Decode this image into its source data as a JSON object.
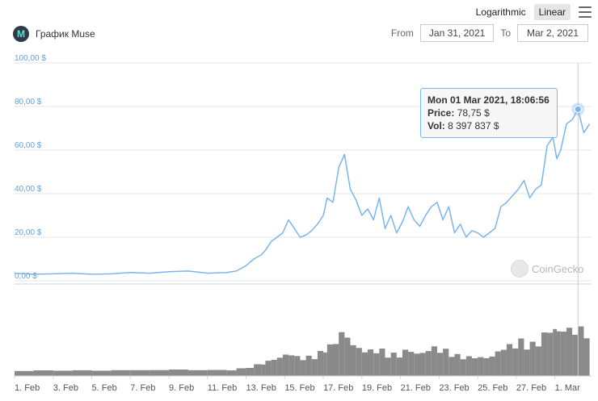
{
  "header": {
    "scale_buttons": [
      "Logarithmic",
      "Linear"
    ],
    "active_scale": "Linear",
    "title": "График Muse",
    "from_label": "From",
    "from_value": "Jan 31, 2021",
    "to_label": "To",
    "to_value": "Mar 2, 2021"
  },
  "tooltip": {
    "date": "Mon 01 Mar 2021, 18:06:56",
    "price_label": "Price:",
    "price_value": "78,75 $",
    "vol_label": "Vol:",
    "vol_value": "8 397 837 $"
  },
  "credit": "CoinGecko",
  "colors": {
    "line": "#7cb5ec",
    "volume": "#8a8a8a",
    "grid": "#e6e6e6",
    "axis_text": "#6a9fd4"
  },
  "chart_data": {
    "type": "line",
    "title": "",
    "xlabel": "",
    "ylabel": "",
    "ylim": [
      0,
      100
    ],
    "y_ticks": [
      "0,00 $",
      "20,00 $",
      "40,00 $",
      "60,00 $",
      "80,00 $",
      "100,00 $"
    ],
    "x_ticks": [
      "1. Feb",
      "3. Feb",
      "5. Feb",
      "7. Feb",
      "9. Feb",
      "11. Feb",
      "13. Feb",
      "15. Feb",
      "17. Feb",
      "19. Feb",
      "21. Feb",
      "23. Feb",
      "25. Feb",
      "27. Feb",
      "1. Mar"
    ],
    "x_start_day": 0,
    "x_tick_days": [
      0,
      2,
      4,
      6,
      8,
      10,
      12,
      14,
      16,
      18,
      20,
      22,
      24,
      26,
      28
    ],
    "x_range_days": [
      0,
      29.9
    ],
    "series": [
      {
        "price_days": [
          0,
          1,
          2,
          3,
          4,
          5,
          6,
          7,
          8,
          9,
          10,
          11,
          11.5,
          12,
          12.4,
          12.8,
          13.0,
          13.3,
          13.6,
          13.9,
          14.2,
          14.5,
          14.8,
          15.1,
          15.4,
          15.7,
          16.0,
          16.2,
          16.5,
          16.8,
          17.1,
          17.4,
          17.7,
          18.0,
          18.3,
          18.6,
          18.9,
          19.2,
          19.5,
          19.8,
          20.1,
          20.4,
          20.7,
          21.0,
          21.3,
          21.6,
          21.9,
          22.2,
          22.5,
          22.8,
          23.1,
          23.4,
          23.7,
          24.0,
          24.3,
          24.6,
          24.9,
          25.2,
          25.5,
          25.8,
          26.1,
          26.4,
          26.7,
          27.0,
          27.3,
          27.6,
          27.9,
          28.1,
          28.3,
          28.6,
          28.9,
          29.2,
          29.5,
          29.8
        ],
        "price_values": [
          3.5,
          3,
          3.2,
          3.5,
          3,
          3.2,
          3.8,
          3.5,
          4.2,
          4.5,
          3.5,
          3.8,
          4.5,
          7,
          10,
          12,
          14,
          18,
          20,
          22,
          28,
          24,
          20,
          21,
          23,
          26,
          30,
          38,
          36,
          52,
          58,
          42,
          37,
          30,
          33,
          28,
          38,
          24,
          30,
          22,
          27,
          34,
          28,
          25,
          30,
          34,
          36,
          28,
          34,
          22,
          26,
          20,
          23,
          22,
          20,
          22,
          24,
          34,
          36,
          39,
          42,
          46,
          38,
          42,
          44,
          62,
          66,
          56,
          60,
          72,
          74,
          78.75,
          68,
          72
        ]
      }
    ]
  }
}
